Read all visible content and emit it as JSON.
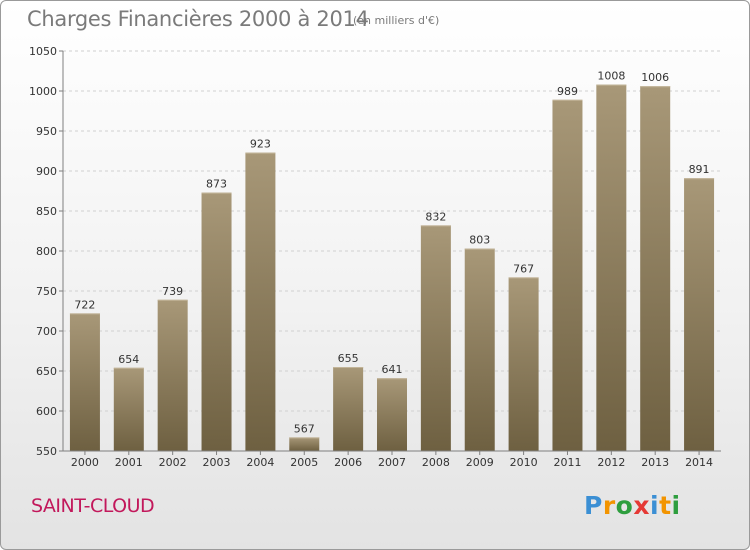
{
  "header": {
    "title": "Charges Financières 2000 à 2014",
    "subtitle": "(en milliers d'€)"
  },
  "footer": {
    "city": "SAINT-CLOUD"
  },
  "logo": {
    "letters": [
      "P",
      "r",
      "o",
      "x",
      "i",
      "t",
      "i"
    ],
    "colors": [
      "#3b8fd4",
      "#f29400",
      "#2e9e3e",
      "#e53935",
      "#3b8fd4",
      "#f29400",
      "#2e9e3e"
    ]
  },
  "colors": {
    "bar_top": "#a89878",
    "bar_bottom": "#6e6041",
    "axis": "#7f7f7f",
    "grid": "#d0d0d0"
  },
  "chart_data": {
    "type": "bar",
    "categories": [
      "2000",
      "2001",
      "2002",
      "2003",
      "2004",
      "2005",
      "2006",
      "2007",
      "2008",
      "2009",
      "2010",
      "2011",
      "2012",
      "2013",
      "2014"
    ],
    "values": [
      722,
      654,
      739,
      873,
      923,
      567,
      655,
      641,
      832,
      803,
      767,
      989,
      1008,
      1006,
      891
    ],
    "ylim": [
      550,
      1050
    ],
    "yticks": [
      550,
      600,
      650,
      700,
      750,
      800,
      850,
      900,
      950,
      1000,
      1050
    ],
    "grid": true,
    "data_labels": true
  }
}
